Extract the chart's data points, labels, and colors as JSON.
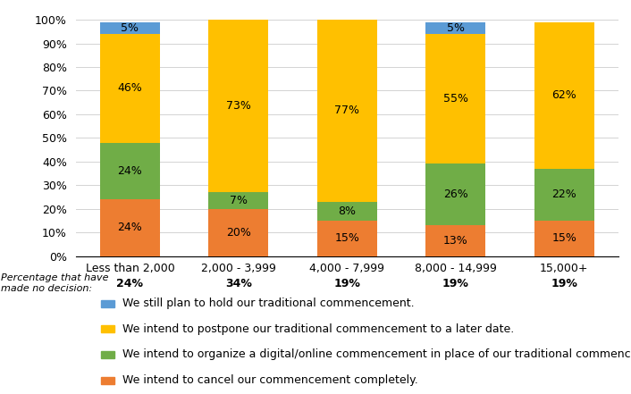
{
  "categories": [
    "Less than 2,000\n24%",
    "2,000 - 3,999\n34%",
    "4,000 - 7,999\n19%",
    "8,000 - 14,999\n19%",
    "15,000+\n19%"
  ],
  "series": [
    {
      "label": "We still plan to hold our traditional commencement.",
      "color": "#5B9BD5",
      "values": [
        5,
        0,
        0,
        5,
        0
      ]
    },
    {
      "label": "We intend to postpone our traditional commencement to a later date.",
      "color": "#FFC000",
      "values": [
        46,
        73,
        77,
        55,
        62
      ]
    },
    {
      "label": "We intend to organize a digital/online commencement in place of our traditional commencement.",
      "color": "#70AD47",
      "values": [
        24,
        7,
        8,
        26,
        22
      ]
    },
    {
      "label": "We intend to cancel our commencement completely.",
      "color": "#ED7D31",
      "values": [
        24,
        20,
        15,
        13,
        15
      ]
    }
  ],
  "no_decision_label": "Percentage that have\nmade no decision:",
  "background_color": "#FFFFFF",
  "label_fontsize": 9,
  "tick_fontsize": 9,
  "legend_fontsize": 9,
  "no_decision_fontsize": 8
}
